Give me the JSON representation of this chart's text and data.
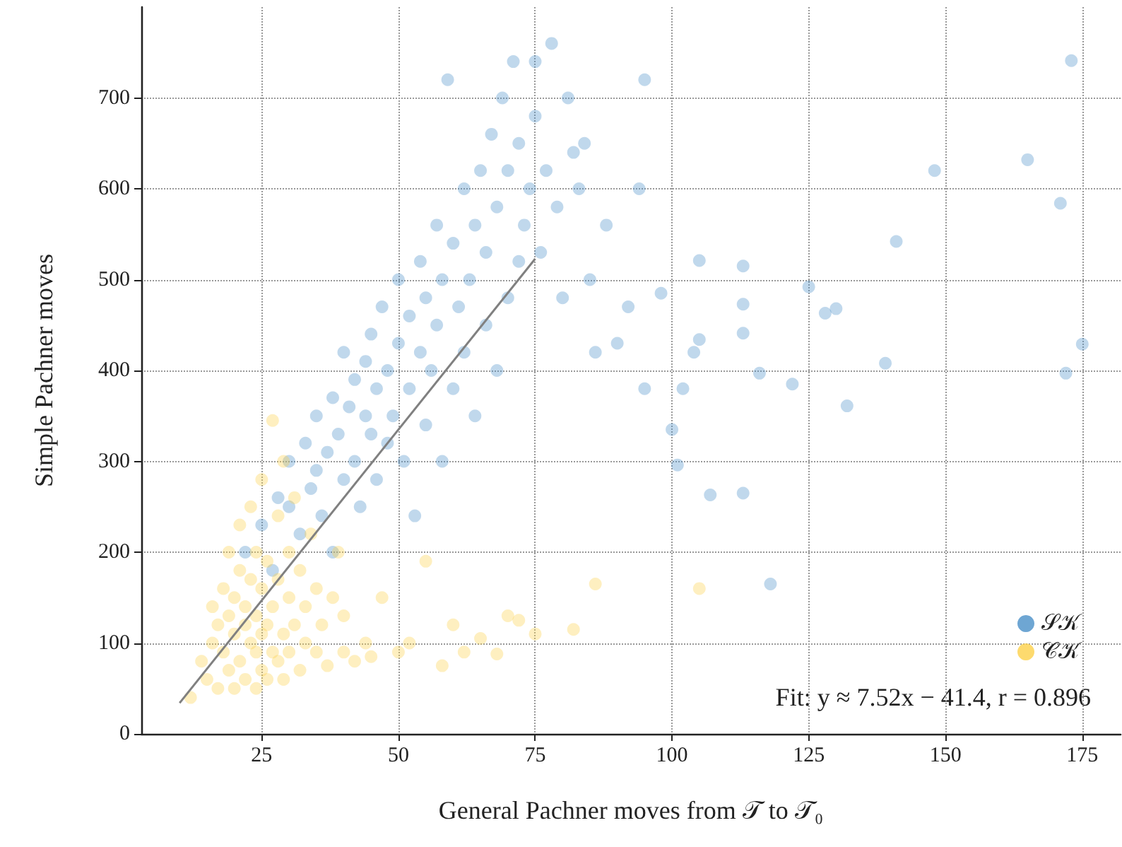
{
  "chart_data": {
    "type": "scatter",
    "xlabel": "General Pachner moves from 𝒯 to 𝒯₀",
    "ylabel": "Simple Pachner moves",
    "xlim": [
      3,
      182
    ],
    "xticks": [
      25,
      50,
      75,
      100,
      125,
      150,
      175
    ],
    "ylim": [
      0,
      800
    ],
    "yticks": [
      0,
      100,
      200,
      300,
      400,
      500,
      600,
      700
    ],
    "grid": true,
    "legend": "bottom right",
    "marker": "circle",
    "annotations": [
      "Fit: y ≈ 7.52x − 41.4, r = 0.896"
    ],
    "series": [
      {
        "name": "𝒮𝒦",
        "color": "#4a90c8",
        "x": [
          22,
          25,
          27,
          28,
          30,
          30,
          32,
          33,
          34,
          35,
          35,
          36,
          37,
          38,
          38,
          39,
          40,
          40,
          41,
          42,
          42,
          43,
          44,
          44,
          45,
          45,
          46,
          46,
          47,
          48,
          48,
          49,
          50,
          50,
          51,
          52,
          52,
          53,
          54,
          54,
          55,
          55,
          56,
          57,
          57,
          58,
          58,
          59,
          60,
          60,
          61,
          62,
          62,
          63,
          64,
          64,
          65,
          66,
          66,
          67,
          68,
          68,
          69,
          70,
          70,
          71,
          72,
          72,
          73,
          74,
          75,
          75,
          76,
          77,
          78,
          79,
          80,
          81,
          82,
          83,
          84,
          85,
          86,
          88,
          90,
          92,
          94,
          95,
          95,
          98,
          100,
          101,
          102,
          104,
          105,
          105,
          107,
          113,
          113,
          113,
          113,
          116,
          118,
          122,
          125,
          128,
          130,
          132,
          139,
          141,
          148,
          165,
          171,
          172,
          173,
          175
        ],
        "values": [
          200,
          230,
          180,
          260,
          250,
          300,
          220,
          320,
          270,
          350,
          290,
          240,
          310,
          370,
          200,
          330,
          280,
          420,
          360,
          300,
          390,
          250,
          350,
          410,
          330,
          440,
          280,
          380,
          470,
          320,
          400,
          350,
          430,
          500,
          300,
          380,
          460,
          240,
          420,
          520,
          340,
          480,
          400,
          450,
          560,
          300,
          500,
          720,
          380,
          540,
          470,
          420,
          600,
          500,
          350,
          560,
          620,
          450,
          530,
          660,
          400,
          580,
          700,
          480,
          620,
          740,
          520,
          650,
          560,
          600,
          680,
          740,
          530,
          620,
          760,
          580,
          480,
          700,
          640,
          600,
          650,
          500,
          420,
          560,
          430,
          470,
          600,
          720,
          380,
          485,
          335,
          296,
          380,
          420,
          434,
          521,
          263,
          515,
          473,
          441,
          265,
          397,
          165,
          385,
          492,
          463,
          468,
          361,
          408,
          542,
          620,
          632,
          584,
          397,
          741,
          429
        ]
      },
      {
        "name": "𝒞𝒦",
        "color": "#fdd14a",
        "x": [
          12,
          14,
          15,
          16,
          16,
          17,
          17,
          18,
          18,
          19,
          19,
          19,
          20,
          20,
          20,
          21,
          21,
          21,
          22,
          22,
          22,
          23,
          23,
          23,
          24,
          24,
          24,
          24,
          25,
          25,
          25,
          25,
          26,
          26,
          26,
          27,
          27,
          27,
          28,
          28,
          28,
          29,
          29,
          29,
          30,
          30,
          30,
          31,
          31,
          32,
          32,
          33,
          33,
          34,
          35,
          35,
          36,
          37,
          38,
          39,
          40,
          40,
          42,
          44,
          45,
          47,
          50,
          52,
          55,
          58,
          60,
          62,
          65,
          68,
          70,
          72,
          75,
          82,
          86,
          105
        ],
        "values": [
          40,
          80,
          60,
          100,
          140,
          50,
          120,
          90,
          160,
          70,
          130,
          200,
          50,
          110,
          150,
          80,
          180,
          230,
          60,
          120,
          140,
          100,
          170,
          250,
          50,
          90,
          130,
          200,
          70,
          110,
          160,
          280,
          60,
          120,
          190,
          90,
          140,
          345,
          80,
          170,
          240,
          60,
          110,
          300,
          90,
          150,
          200,
          120,
          260,
          70,
          180,
          100,
          140,
          220,
          90,
          160,
          120,
          75,
          150,
          200,
          90,
          130,
          80,
          100,
          85,
          150,
          90,
          100,
          190,
          75,
          120,
          90,
          105,
          88,
          130,
          125,
          110,
          115,
          165,
          160
        ]
      },
      {
        "type": "line",
        "color": "#808080",
        "marker": "none",
        "x": [
          10,
          75
        ],
        "values": [
          34,
          523
        ]
      }
    ]
  }
}
